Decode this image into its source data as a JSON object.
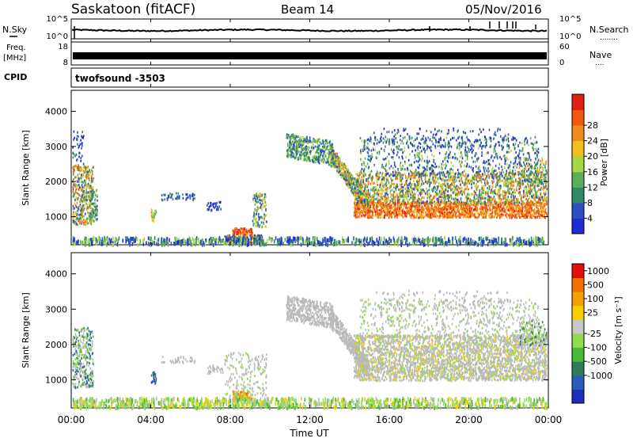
{
  "header": {
    "title": "Saskatoon (fitACF)",
    "beam": "Beam 14",
    "date": "05/Nov/2016"
  },
  "colors": {
    "power_scale": [
      "#1f2bd6",
      "#2e4fc2",
      "#2f8a67",
      "#5cae57",
      "#a9d646",
      "#f0c020",
      "#f08a18",
      "#f05a10",
      "#e02010"
    ],
    "velocity_scale": [
      "#1d2fc0",
      "#2a5db8",
      "#2f7a59",
      "#49b832",
      "#8fdc4c",
      "#c8c8c8",
      "#f5d000",
      "#f5a000",
      "#f07000",
      "#e01010"
    ],
    "ground_scatter": "#b9b9b9"
  },
  "chart_data": [
    {
      "type": "line",
      "name": "nsky-nsearch-panel",
      "left_label": "N.Sky",
      "right_label": "N.Search",
      "left_ticks": [
        "10^5",
        "10^0"
      ],
      "right_ticks": [
        "10^5",
        "10^0"
      ],
      "right_marker": "........"
    },
    {
      "type": "line",
      "name": "freq-nave-panel",
      "left_label_top": "Freq.",
      "left_label_bottom": "[MHz]",
      "right_label": "Nave",
      "left_ticks": [
        18,
        8
      ],
      "right_ticks": [
        60,
        0
      ],
      "right_marker": "...."
    },
    {
      "type": "table",
      "name": "cpid-panel",
      "label": "CPID",
      "value": "twofsound -3503"
    },
    {
      "type": "heatmap",
      "name": "power-panel",
      "ylabel": "Slant Range [km]",
      "yticks": [
        1000,
        2000,
        3000,
        4000
      ],
      "ylim": [
        200,
        4600
      ],
      "colorbar_label": "Power [dB]",
      "colorbar_ticks": [
        4,
        8,
        12,
        16,
        20,
        24,
        28
      ]
    },
    {
      "type": "heatmap",
      "name": "velocity-panel",
      "ylabel": "Slant Range [km]",
      "yticks": [
        1000,
        2000,
        3000,
        4000
      ],
      "ylim": [
        200,
        4600
      ],
      "colorbar_label": "Velocity [m s⁻¹]",
      "colorbar_ticks": [
        1000,
        500,
        100,
        25,
        -25,
        -100,
        -500,
        -1000
      ]
    }
  ],
  "xaxis": {
    "label": "Time UT",
    "ticks": [
      "00:00",
      "04:00",
      "08:00",
      "12:00",
      "16:00",
      "20:00",
      "00:00"
    ],
    "range_hours": [
      0,
      24
    ]
  }
}
